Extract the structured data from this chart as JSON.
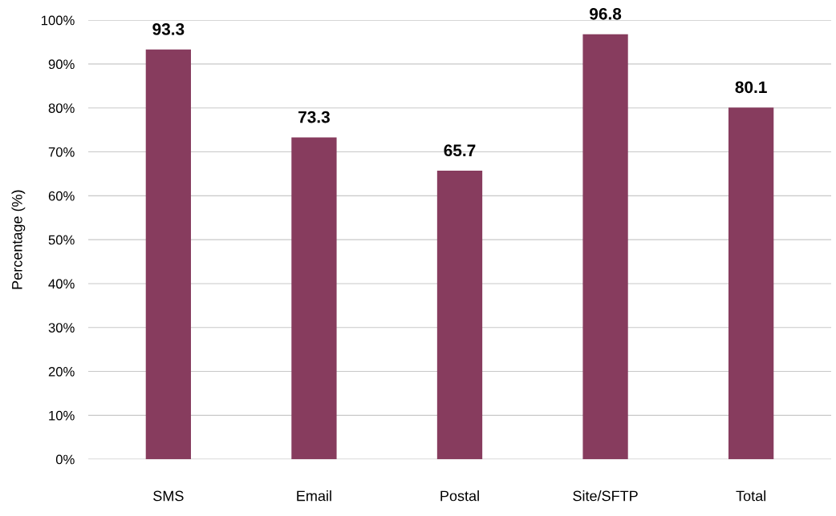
{
  "chart_data": {
    "type": "bar",
    "ylabel": "Percentage (%)",
    "categories": [
      "SMS",
      "Email",
      "Postal",
      "Site/SFTP",
      "Total"
    ],
    "values": [
      93.3,
      73.3,
      65.7,
      96.8,
      80.1
    ],
    "color": "#873c5e",
    "ylim": [
      0,
      100
    ],
    "yticks": [
      {
        "value": 0,
        "label": "0%"
      },
      {
        "value": 10,
        "label": "10%"
      },
      {
        "value": 20,
        "label": "20%"
      },
      {
        "value": 30,
        "label": "30%"
      },
      {
        "value": 40,
        "label": "40%"
      },
      {
        "value": 50,
        "label": "50%"
      },
      {
        "value": 60,
        "label": "60%"
      },
      {
        "value": 70,
        "label": "70%"
      },
      {
        "value": 80,
        "label": "80%"
      },
      {
        "value": 90,
        "label": "90%"
      },
      {
        "value": 100,
        "label": "100%"
      }
    ],
    "grid": "y",
    "data_labels": true
  }
}
